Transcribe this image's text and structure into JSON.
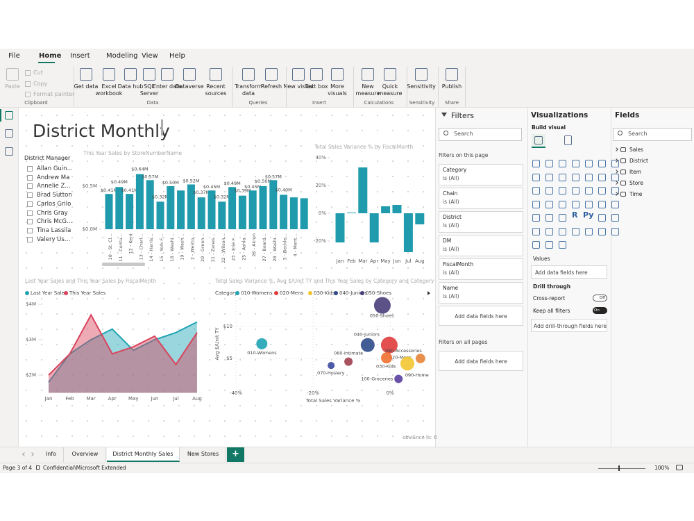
{
  "menu": [
    "File",
    "Home",
    "Insert",
    "Modeling",
    "View",
    "Help"
  ],
  "ribbon": {
    "buttons": [
      "Paste",
      "Get data",
      "Excel workbook",
      "Data hub",
      "SQL Server",
      "Enter data",
      "Dataverse",
      "Recent sources",
      "Transform data",
      "Refresh",
      "New visual",
      "Text box",
      "More visuals",
      "New measure",
      "Quick measure",
      "Sensitivity",
      "Publish"
    ],
    "small_buttons": [
      "Cut",
      "Copy",
      "Format painter"
    ],
    "groups": [
      "Clipboard",
      "Data",
      "Queries",
      "Insert",
      "Calculations",
      "Sensitivity",
      "Share"
    ]
  },
  "report": {
    "title": "District Monthly",
    "slicer": {
      "title": "District Manager",
      "items": [
        "Allan Guin…",
        "Andrew Ma",
        "Annelie Z…",
        "Brad Sutton",
        "Carlos Grilo",
        "Chris Gray",
        "Chris McG…",
        "Tina Lassila",
        "Valery Us…"
      ]
    },
    "charts": [
      {
        "type": "bar",
        "title": "This Year Sales by StoreNumberName",
        "categories": [
          "10 - St. Cl…",
          "11 - Centu…",
          "12 - Kent",
          "13 - Charl…",
          "14 - Harris…",
          "15 - York F…",
          "18 - Washi…",
          "19 - Wash…",
          "2 - Weirto…",
          "20 - Green…",
          "21 - Zanes…",
          "22 - Wilson…",
          "23 - Erie F…",
          "25 - Ashla…",
          "26 - Akron",
          "27 - Board…",
          "28 - Washi…",
          "3 - Beckle…",
          "4 - Ment…",
          null
        ],
        "values": [
          0.41,
          0.49,
          0.41,
          0.64,
          0.57,
          0.32,
          0.5,
          0.45,
          0.52,
          0.37,
          0.45,
          0.32,
          0.49,
          0.39,
          0.45,
          0.5,
          0.57,
          0.4,
          0.37,
          0.36
        ],
        "value_labels": [
          "$0.41M",
          "$0.49M",
          "$0.41M",
          "$0.64M",
          "$0.57M",
          "$0.32M",
          "$0.50M",
          null,
          "$0.52M",
          "$0.37M",
          "$0.45M",
          "$0.32M",
          "$0.49M",
          "$0.39M",
          "$0.45M",
          "$0.50M",
          "$0.57M",
          "$0.40M",
          null,
          null
        ],
        "color": "#1f9bad",
        "ylim": [
          0,
          0.75
        ],
        "yticks": [
          {
            "value": 0,
            "label": "$0.0M"
          },
          {
            "value": 0.5,
            "label": "$0.5M"
          }
        ],
        "grid": false
      },
      {
        "type": "bar",
        "title": "Total Sales Variance % by FiscalMonth",
        "categories": [
          "Jan",
          "Feb",
          "Mar",
          "Apr",
          "May",
          "Jun",
          "Jul",
          "Aug"
        ],
        "values": [
          -21,
          0.5,
          33,
          -21,
          5,
          6,
          -28,
          -8
        ],
        "color": "#1f9bad",
        "ylim": [
          -30,
          45
        ],
        "yticks": [
          {
            "value": -20,
            "label": "-20%"
          },
          {
            "value": 0,
            "label": "0%"
          },
          {
            "value": 20,
            "label": "20%"
          },
          {
            "value": 40,
            "label": "40%"
          }
        ],
        "grid": false
      },
      {
        "type": "area",
        "title": "Last Year Sales and This Year Sales by FiscalMonth",
        "categories": [
          "Jan",
          "Feb",
          "Mar",
          "Apr",
          "May",
          "Jun",
          "Jul",
          "Aug"
        ],
        "series": [
          {
            "name": "Last Year Sales",
            "color": "#1fa3b4",
            "values": [
              1.8,
              2.6,
              3.0,
              3.3,
              2.7,
              3.0,
              3.2,
              3.5
            ]
          },
          {
            "name": "This Year Sales",
            "color": "#d9435c",
            "values": [
              2.0,
              2.6,
              3.7,
              2.6,
              2.8,
              3.1,
              2.3,
              3.2
            ]
          }
        ],
        "ylim": [
          1.5,
          4.2
        ],
        "yticks": [
          {
            "value": 2,
            "label": "$2M"
          },
          {
            "value": 3,
            "label": "$3M"
          },
          {
            "value": 4,
            "label": "$4M"
          }
        ],
        "legend": "top-left"
      },
      {
        "type": "scatter",
        "title": "Total Sales Variance %, Avg $/Unit TY and This Year Sales by Category and Category",
        "legend_title": "Category",
        "x_label": "Total Sales Variance %",
        "y_label": "Avg $/Unit TY",
        "points": [
          {
            "name": "010-Womens",
            "color": "#1fa3b4",
            "x": -33.3,
            "y": 7.3,
            "size": 4
          },
          {
            "name": "020-Mens",
            "color": "#e03c3c",
            "x": -0.2,
            "y": 7.1,
            "size": 9
          },
          {
            "name": "030-Kids",
            "color": "#f2c530",
            "x": 4.5,
            "y": 4.2,
            "size": 6.25
          },
          {
            "name": "040-Juniors",
            "color": "#2d4a8a",
            "x": -5.8,
            "y": 7.1,
            "size": 6.25
          },
          {
            "name": "050-Shoes",
            "color": "#4a3f7a",
            "x": -2.0,
            "y": 13.3,
            "size": 9
          },
          {
            "name": "060-Intimate",
            "color": "#a0404f",
            "x": -10.8,
            "y": 4.5,
            "size": 2.25
          },
          {
            "name": "070-Hosiery",
            "color": "#3a4aa0",
            "x": -15.3,
            "y": 3.9,
            "size": 1.6
          },
          {
            "name": "080-Accessories",
            "color": "#f07030",
            "x": -0.9,
            "y": 5.1,
            "size": 4
          },
          {
            "name": "090-Home",
            "color": "#e8843a",
            "x": 7.9,
            "y": 5.0,
            "size": 3
          },
          {
            "name": "100-Groceries",
            "color": "#5a3fa0",
            "x": 2.2,
            "y": 1.8,
            "size": 2.25
          }
        ],
        "legend_count": 5,
        "xlim": [
          -42,
          10
        ],
        "ylim": [
          0,
          15
        ],
        "xticks": [
          {
            "value": -40,
            "label": "-40%"
          },
          {
            "value": -20,
            "label": "-20%"
          },
          {
            "value": 0,
            "label": "0%"
          }
        ],
        "yticks": [
          {
            "value": 5,
            "label": "$5"
          },
          {
            "value": 10,
            "label": "$10"
          }
        ],
        "grid": true
      }
    ],
    "watermark": "obviEnce llc ©"
  },
  "filters": {
    "title": "Filters",
    "search": "Search",
    "on_page": "Filters on this page",
    "cards": [
      {
        "field": "Category",
        "state": "is (All)"
      },
      {
        "field": "Chain",
        "state": "is (All)"
      },
      {
        "field": "District",
        "state": "is (All)"
      },
      {
        "field": "DM",
        "state": "is (All)"
      },
      {
        "field": "FiscalMonth",
        "state": "is (All)"
      },
      {
        "field": "Name",
        "state": "is (All)"
      }
    ],
    "add_page": "Add data fields here",
    "all_pages": "Filters on all pages",
    "add_all": "Add data fields here"
  },
  "visualizations": {
    "title": "Visualizations",
    "build": "Build visual",
    "icon_texts": [
      "R",
      "Py"
    ],
    "values": "Values",
    "add_values": "Add data fields here",
    "drill": "Drill through",
    "cross_report": "Cross-report",
    "cross_state": "Off",
    "keep_filters": "Keep all filters",
    "keep_state": "On",
    "add_drill": "Add drill-through fields here"
  },
  "fields": {
    "title": "Fields",
    "search": "Search",
    "tables": [
      "Sales",
      "District",
      "Item",
      "Store",
      "Time"
    ]
  },
  "tabs": [
    "Info",
    "Overview",
    "District Monthly Sales",
    "New Stores",
    "+"
  ],
  "status": {
    "page": "Page 3 of 4",
    "label": "Confidential\\Microsoft Extended",
    "zoom": "100%"
  }
}
